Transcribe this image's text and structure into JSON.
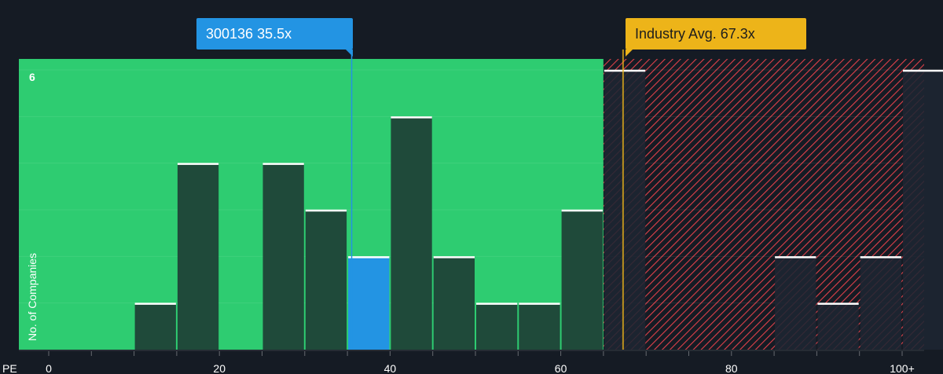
{
  "colors": {
    "background": "#151b24",
    "undervalued_zone": "#2ecc71",
    "overvalued_zone": "#e0414a",
    "bar_fill": "#1f4a3a",
    "highlight_bar": "#2394e3",
    "industry_line": "#edb419",
    "bar_cap": "#ffffff"
  },
  "labels": {
    "company_badge": "300136 35.5x",
    "industry_badge": "Industry Avg. 67.3x"
  },
  "chart_data": {
    "type": "bar",
    "x_axis_label": "PE",
    "y_axis_label": "No. of Companies",
    "x_ticks": [
      "0",
      "20",
      "40",
      "60",
      "80",
      "100+"
    ],
    "x_tick_values": [
      0,
      20,
      40,
      60,
      80,
      100
    ],
    "y_ticks": [
      "6"
    ],
    "y_tick_values": [
      6
    ],
    "xlim": [
      0,
      102
    ],
    "ylim": [
      0,
      6.25
    ],
    "bin_width": 5,
    "bins": [
      {
        "start": 10,
        "count": 1
      },
      {
        "start": 15,
        "count": 4
      },
      {
        "start": 25,
        "count": 4
      },
      {
        "start": 30,
        "count": 3
      },
      {
        "start": 35,
        "count": 2,
        "highlight": true
      },
      {
        "start": 40,
        "count": 5
      },
      {
        "start": 45,
        "count": 2
      },
      {
        "start": 50,
        "count": 1
      },
      {
        "start": 55,
        "count": 1
      },
      {
        "start": 60,
        "count": 3
      },
      {
        "start": 65,
        "count": 6
      },
      {
        "start": 85,
        "count": 2
      },
      {
        "start": 90,
        "count": 1
      },
      {
        "start": 95,
        "count": 2
      },
      {
        "start": 100,
        "count": 6
      }
    ],
    "company_value": 35.5,
    "industry_avg": 67.3,
    "zone_split": 65,
    "grid": true
  }
}
